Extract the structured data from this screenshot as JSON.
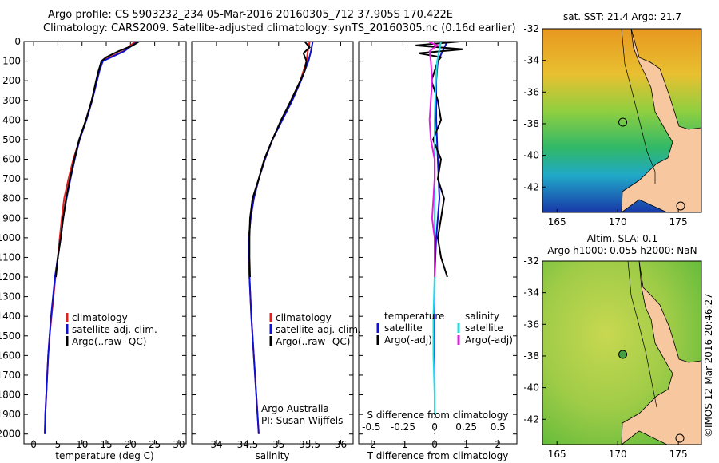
{
  "header": {
    "title_line1": "Argo profile: CS 5903232_234 05-Mar-2016 20160305_712 37.905S 170.422E",
    "title_line2": "Climatology: CARS2009. Satellite-adjusted climatology: synTS_20160305.nc (0.16d earlier)"
  },
  "colors": {
    "climatology": "#e02020",
    "satellite": "#1010d0",
    "argo": "#000000",
    "salinity_satellite": "#22dddd",
    "salinity_argo": "#e020e0",
    "land": "#f7c8a0"
  },
  "chart_data": [
    {
      "type": "line",
      "id": "temperature",
      "xlabel": "temperature (deg C)",
      "ylabel": "",
      "xlim": [
        -2,
        31.5
      ],
      "ylim": [
        2050,
        0
      ],
      "xticks": [
        0,
        5,
        10,
        15,
        20,
        25,
        30
      ],
      "yticks": [
        0,
        100,
        200,
        300,
        400,
        500,
        600,
        700,
        800,
        900,
        1000,
        1100,
        1200,
        1300,
        1400,
        1500,
        1600,
        1700,
        1800,
        1900,
        2000
      ],
      "legend": {
        "position": "bottom-left",
        "entries": [
          "climatology",
          "satellite-adj. clim.",
          "Argo(..raw -QC)"
        ]
      },
      "series": [
        {
          "name": "climatology",
          "color_key": "climatology",
          "depth": [
            0,
            50,
            100,
            150,
            200,
            300,
            400,
            500,
            600,
            700,
            800,
            900,
            1000,
            1100,
            1200,
            1300,
            1400,
            1500,
            1600,
            1700,
            1800,
            1900,
            2000
          ],
          "values": [
            21.0,
            18.5,
            14.0,
            13.5,
            13.0,
            12.0,
            10.8,
            9.5,
            8.2,
            7.2,
            6.3,
            5.8,
            5.4,
            5.0,
            4.5,
            4.1,
            3.7,
            3.3,
            3.0,
            2.8,
            2.6,
            2.4,
            2.3
          ]
        },
        {
          "name": "satellite-adj. clim.",
          "color_key": "satellite",
          "depth": [
            0,
            50,
            100,
            150,
            200,
            300,
            400,
            500,
            600,
            700,
            800,
            900,
            1000,
            1100,
            1200,
            1300,
            1400,
            1500,
            1600,
            1700,
            1800,
            1900,
            2000
          ],
          "values": [
            21.5,
            18.7,
            14.3,
            13.6,
            13.1,
            12.1,
            10.9,
            9.5,
            8.5,
            7.6,
            6.8,
            6.1,
            5.6,
            5.0,
            4.4,
            4.0,
            3.6,
            3.3,
            3.0,
            2.8,
            2.6,
            2.4,
            2.3
          ]
        },
        {
          "name": "Argo(..raw -QC)",
          "color_key": "argo",
          "depth": [
            0,
            20,
            50,
            80,
            100,
            150,
            200,
            300,
            400,
            500,
            600,
            700,
            800,
            900,
            1000,
            1100,
            1200
          ],
          "values": [
            21.8,
            20.5,
            17.5,
            15.0,
            14.0,
            13.4,
            12.9,
            12.0,
            10.8,
            9.4,
            8.4,
            7.5,
            6.7,
            6.1,
            5.6,
            5.0,
            4.6
          ]
        }
      ]
    },
    {
      "type": "line",
      "id": "salinity",
      "xlabel": "salinity",
      "ylabel": "",
      "xlim": [
        33.6,
        36.2
      ],
      "ylim": [
        2050,
        0
      ],
      "xticks": [
        34,
        34.5,
        35,
        35.5,
        36
      ],
      "legend": {
        "position": "bottom-right",
        "entries": [
          "climatology",
          "satellite-adj. clim.",
          "Argo(..raw -QC)"
        ]
      },
      "annotation": {
        "line1": "Argo Australia",
        "line2": "PI: Susan Wijffels"
      },
      "series": [
        {
          "name": "climatology",
          "color_key": "climatology",
          "depth": [
            0,
            50,
            100,
            200,
            300,
            400,
            500,
            600,
            700,
            800,
            900,
            1000,
            1100,
            1200,
            1400,
            1600,
            1800,
            2000
          ],
          "values": [
            35.5,
            35.47,
            35.45,
            35.35,
            35.2,
            35.05,
            34.9,
            34.78,
            34.68,
            34.6,
            34.55,
            34.52,
            34.52,
            34.53,
            34.56,
            34.6,
            34.64,
            34.68
          ]
        },
        {
          "name": "satellite-adj. clim.",
          "color_key": "satellite",
          "depth": [
            0,
            50,
            100,
            200,
            300,
            400,
            500,
            600,
            700,
            800,
            900,
            1000,
            1100,
            1200,
            1400,
            1600,
            1800,
            2000
          ],
          "values": [
            35.55,
            35.52,
            35.48,
            35.36,
            35.22,
            35.06,
            34.9,
            34.78,
            34.68,
            34.6,
            34.55,
            34.52,
            34.52,
            34.53,
            34.56,
            34.6,
            34.64,
            34.68
          ]
        },
        {
          "name": "Argo(..raw -QC)",
          "color_key": "argo",
          "depth": [
            0,
            30,
            60,
            100,
            150,
            200,
            300,
            400,
            500,
            600,
            700,
            800,
            900,
            1000,
            1100,
            1200
          ],
          "values": [
            35.42,
            35.5,
            35.4,
            35.45,
            35.42,
            35.35,
            35.2,
            35.04,
            34.9,
            34.77,
            34.68,
            34.58,
            34.54,
            34.53,
            34.53,
            34.54
          ]
        }
      ]
    },
    {
      "type": "line",
      "id": "differences",
      "xlabel": "T difference from climatology",
      "x2label": "S difference from climatology",
      "xlim": [
        -2.4,
        2.6
      ],
      "ylim": [
        2050,
        0
      ],
      "xticks": [
        -2,
        -1,
        0,
        1,
        2
      ],
      "x2ticks_values": [
        -0.5,
        -0.25,
        0,
        0.25,
        0.5
      ],
      "x2ticks_labels": [
        "-0.5",
        "-0.25",
        "0",
        "0.25",
        "0.5"
      ],
      "legend": {
        "position": "bottom",
        "temperature_header": "temperature",
        "salinity_header": "salinity",
        "entries": [
          "satellite",
          "Argo(-adj)",
          "satellite",
          "Argo(-adj)"
        ]
      },
      "series": [
        {
          "name": "satellite",
          "group": "temperature",
          "color_key": "satellite",
          "depth": [
            0,
            100,
            200,
            400,
            600,
            800,
            1000,
            1200,
            1400,
            1600,
            1800,
            1900
          ],
          "values": [
            0.4,
            0.1,
            0.05,
            0.05,
            0.1,
            0.15,
            0.05,
            0.0,
            0.0,
            0.0,
            0.0,
            0.0
          ]
        },
        {
          "name": "Argo(-adj)",
          "group": "temperature",
          "color_key": "argo",
          "depth": [
            0,
            20,
            40,
            60,
            80,
            100,
            150,
            200,
            300,
            400,
            500,
            600,
            700,
            800,
            900,
            1000,
            1100,
            1200
          ],
          "values": [
            0.8,
            -0.6,
            0.9,
            -0.5,
            0.2,
            0.1,
            0.0,
            -0.1,
            0.1,
            0.2,
            -0.05,
            0.2,
            0.1,
            0.3,
            0.2,
            0.1,
            0.2,
            0.4
          ]
        },
        {
          "name": "satellite",
          "group": "salinity",
          "color_key": "salinity_satellite",
          "depth": [
            0,
            100,
            200,
            400,
            600,
            800,
            1000,
            1200,
            1400,
            1600,
            1800,
            1900
          ],
          "values": [
            0.05,
            0.02,
            0.01,
            0.0,
            0.0,
            0.0,
            0.0,
            0.0,
            -0.01,
            -0.01,
            0.0,
            0.0
          ]
        },
        {
          "name": "Argo(-adj)",
          "group": "salinity",
          "color_key": "salinity_argo",
          "depth": [
            0,
            20,
            50,
            100,
            200,
            300,
            400,
            500,
            600,
            700,
            800,
            900,
            1000,
            1100,
            1200
          ],
          "values": [
            -0.05,
            0.02,
            -0.04,
            -0.03,
            -0.02,
            -0.03,
            -0.04,
            -0.03,
            0.0,
            0.0,
            -0.01,
            -0.02,
            0.0,
            0.0,
            0.0
          ]
        }
      ]
    },
    {
      "type": "heatmap",
      "id": "sst-map",
      "title": "sat. SST: 21.4  Argo: 21.7",
      "xticks": [
        165,
        170,
        175
      ],
      "yticks": [
        -32,
        -34,
        -36,
        -38,
        -40,
        -42
      ],
      "xlim": [
        163.8,
        176.9
      ],
      "ylim": [
        -43.6,
        -32
      ],
      "float_position": {
        "lon": 170.42,
        "lat": -37.9
      }
    },
    {
      "type": "heatmap",
      "id": "sla-map",
      "title_line1": "Altim. SLA: 0.1",
      "title_line2": "Argo h1000: 0.055 h2000: NaN",
      "xticks": [
        165,
        170,
        175
      ],
      "yticks": [
        -32,
        -34,
        -36,
        -38,
        -40,
        -42
      ],
      "xlim": [
        163.8,
        176.9
      ],
      "ylim": [
        -43.6,
        -32
      ],
      "float_position": {
        "lon": 170.42,
        "lat": -37.9
      },
      "side_label": "©IMOS 12-Mar-2016 20:46:27"
    }
  ]
}
